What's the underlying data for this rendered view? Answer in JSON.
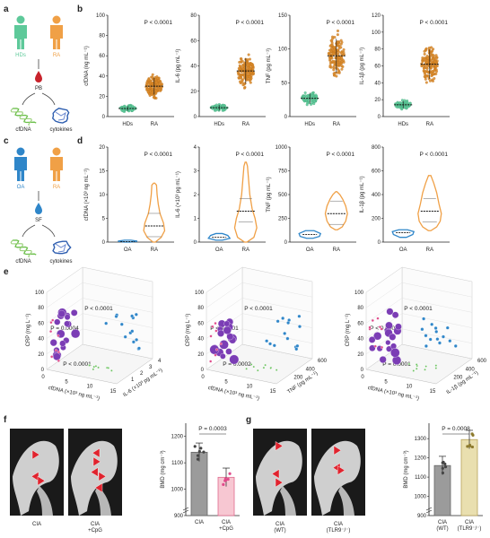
{
  "panels": {
    "a": "a",
    "b": "b",
    "c": "c",
    "d": "d",
    "e": "e",
    "f": "f",
    "g": "g"
  },
  "a": {
    "groups": [
      "HDs",
      "RA"
    ],
    "source": "PB",
    "outputs": [
      "cfDNA",
      "cytokines"
    ]
  },
  "c": {
    "groups": [
      "OA",
      "RA"
    ],
    "source": "SF",
    "outputs": [
      "cfDNA",
      "cytokines"
    ]
  },
  "colors": {
    "hd": "#5ec99a",
    "oa": "#2f86c9",
    "ra": "#f0a046",
    "ra_dot": "#d98a2a",
    "blood": "#c8232c",
    "violet": "#7b3db5",
    "green": "#6bc35f",
    "pink": "#f08aa8",
    "pale_pink": "#f7c7d2",
    "gold": "#e9dfaf",
    "gray_bar": "#9b9b9b"
  },
  "chart_data": [
    {
      "type": "scatter",
      "panel": "b",
      "ylabel": "cfDNA (ng mL⁻¹)",
      "categories": [
        "HDs",
        "RA"
      ],
      "yticks": [
        "0",
        "20",
        "40",
        "60",
        "80",
        "100"
      ],
      "ylim": [
        0,
        100
      ],
      "pvalue": "P < 0.0001",
      "means": [
        8,
        30
      ]
    },
    {
      "type": "scatter",
      "panel": "b",
      "ylabel": "IL-6 (pg mL⁻¹)",
      "categories": [
        "HDs",
        "RA"
      ],
      "yticks": [
        "0",
        "20",
        "40",
        "60",
        "80"
      ],
      "ylim": [
        0,
        80
      ],
      "pvalue": "P < 0.0001",
      "means": [
        7,
        36
      ]
    },
    {
      "type": "scatter",
      "panel": "b",
      "ylabel": "TNF (pg mL⁻¹)",
      "categories": [
        "HDs",
        "RA"
      ],
      "yticks": [
        "0",
        "50",
        "100",
        "150"
      ],
      "ylim": [
        0,
        150
      ],
      "pvalue": "P < 0.0001",
      "means": [
        27,
        90
      ]
    },
    {
      "type": "scatter",
      "panel": "b",
      "ylabel": "IL-1β (pg mL⁻¹)",
      "categories": [
        "HDs",
        "RA"
      ],
      "yticks": [
        "0",
        "20",
        "40",
        "60",
        "80",
        "100",
        "120"
      ],
      "ylim": [
        0,
        120
      ],
      "pvalue": "P < 0.0001",
      "means": [
        14,
        62
      ]
    },
    {
      "type": "violin",
      "panel": "d",
      "ylabel": "cfDNA (×10³ ng mL⁻¹)",
      "categories": [
        "OA",
        "RA"
      ],
      "yticks": [
        "0",
        "5",
        "10",
        "15",
        "20"
      ],
      "ylim": [
        0,
        20
      ],
      "pvalue": "P < 0.0001",
      "medians": [
        0.1,
        3.4
      ]
    },
    {
      "type": "violin",
      "panel": "d",
      "ylabel": "IL-6 (×10³ pg mL⁻¹)",
      "categories": [
        "OA",
        "RA"
      ],
      "yticks": [
        "0",
        "1",
        "2",
        "3",
        "4"
      ],
      "ylim": [
        0,
        4
      ],
      "pvalue": "P < 0.0001",
      "medians": [
        0.2,
        1.3
      ]
    },
    {
      "type": "violin",
      "panel": "d",
      "ylabel": "TNF (pg mL⁻¹)",
      "categories": [
        "OA",
        "RA"
      ],
      "yticks": [
        "0",
        "250",
        "500",
        "750",
        "1000"
      ],
      "ylim": [
        0,
        1000
      ],
      "pvalue": "P < 0.0001",
      "medians": [
        80,
        300
      ]
    },
    {
      "type": "violin",
      "panel": "d",
      "ylabel": "IL-1β (pg mL⁻¹)",
      "categories": [
        "OA",
        "RA"
      ],
      "yticks": [
        "0",
        "200",
        "400",
        "600",
        "800"
      ],
      "ylim": [
        0,
        800
      ],
      "pvalue": "P < 0.0001",
      "medians": [
        80,
        260
      ]
    },
    {
      "type": "scatter3d",
      "panel": "e",
      "xlabel": "cfDNA (×10³ ng mL⁻¹)",
      "ylabel": "IL-6 (×10³ pg mL⁻¹)",
      "zlabel": "CRP (mg L⁻¹)",
      "xticks": [
        "0",
        "5",
        "10",
        "15"
      ],
      "yticks": [
        "1",
        "2",
        "3",
        "4"
      ],
      "zticks": [
        "0",
        "20",
        "40",
        "60",
        "80",
        "100"
      ],
      "pvalues": [
        "P < 0.0001",
        "P = 0.0004",
        "P < 0.0001"
      ]
    },
    {
      "type": "scatter3d",
      "panel": "e",
      "xlabel": "cfDNA (×10³ ng mL⁻¹)",
      "ylabel": "TNF (pg mL⁻¹)",
      "zlabel": "CRP (mg L⁻¹)",
      "xticks": [
        "0",
        "5",
        "10",
        "15"
      ],
      "yticks": [
        "200",
        "400",
        "600"
      ],
      "zticks": [
        "0",
        "20",
        "40",
        "60",
        "80",
        "100"
      ],
      "pvalues": [
        "P < 0.0001",
        "P < 0.0001",
        "P = 0.0002"
      ]
    },
    {
      "type": "scatter3d",
      "panel": "e",
      "xlabel": "cfDNA (×10³ ng mL⁻¹)",
      "ylabel": "IL-1β (pg mL⁻¹)",
      "zlabel": "CRP (mg L⁻¹)",
      "xticks": [
        "0",
        "5",
        "10",
        "15"
      ],
      "yticks": [
        "200",
        "400",
        "600"
      ],
      "zticks": [
        "0",
        "20",
        "40",
        "60",
        "80",
        "100"
      ],
      "pvalues": [
        "P < 0.0001",
        "P < 0.0001",
        "P = 0.0001"
      ]
    },
    {
      "type": "bar",
      "panel": "f",
      "ylabel": "BMD (mg cm⁻³)",
      "categories": [
        "CIA",
        "CIA\n+CpG"
      ],
      "yticks": [
        "900",
        "1000",
        "1100",
        "1200"
      ],
      "ylim": [
        900,
        1250
      ],
      "values": [
        1140,
        1045
      ],
      "pvalue": "P = 0.0003",
      "images": [
        "CIA",
        "CIA\n+CpG"
      ]
    },
    {
      "type": "bar",
      "panel": "g",
      "ylabel": "BMD (mg cm⁻³)",
      "categories": [
        "CIA\n(WT)",
        "CIA\n(TLR9⁻/⁻)"
      ],
      "yticks": [
        "900",
        "1000",
        "1100",
        "1200",
        "1300"
      ],
      "ylim": [
        900,
        1380
      ],
      "values": [
        1160,
        1295
      ],
      "pvalue": "P = 0.0008",
      "images": [
        "CIA\n(WT)",
        "CIA\n(TLR9⁻/⁻)"
      ]
    }
  ]
}
